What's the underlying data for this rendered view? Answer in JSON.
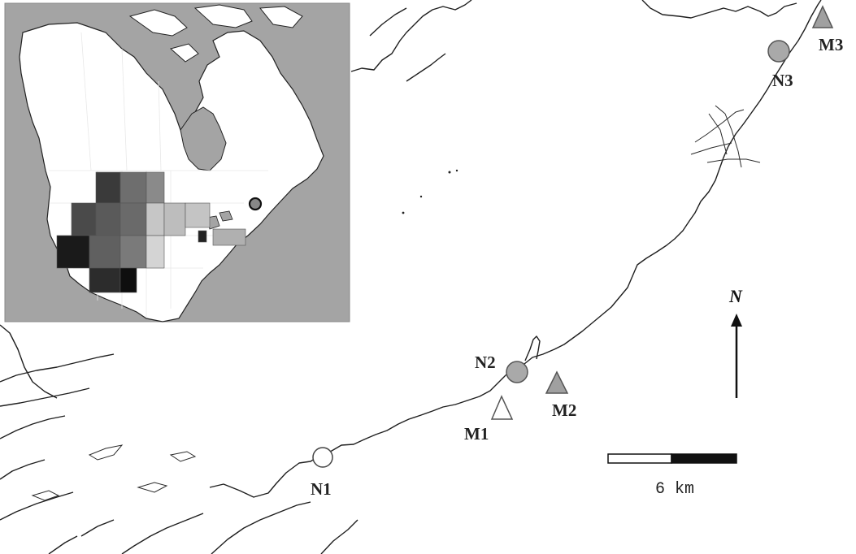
{
  "sites": {
    "N1": {
      "label": "N1",
      "marker": "circle",
      "fill": "#ffffff"
    },
    "N2": {
      "label": "N2",
      "marker": "circle",
      "fill": "#a9a9a9"
    },
    "N3": {
      "label": "N3",
      "marker": "circle",
      "fill": "#a9a9a9"
    },
    "M1": {
      "label": "M1",
      "marker": "triangle",
      "fill": "#ffffff"
    },
    "M2": {
      "label": "M2",
      "marker": "triangle",
      "fill": "#a0a0a0"
    },
    "M3": {
      "label": "M3",
      "marker": "triangle",
      "fill": "#a0a0a0"
    }
  },
  "north_arrow": {
    "label": "N"
  },
  "scale_bar": {
    "label": "6 km"
  },
  "colors": {
    "background": "#ffffff",
    "inset_ocean": "#a4a4a4",
    "inset_land": "#ffffff",
    "inset_study_region": "#c8c8c8",
    "coastline": "#1e1e1e"
  },
  "inset_map": {
    "description_visible": false,
    "location_marker": "circle"
  }
}
